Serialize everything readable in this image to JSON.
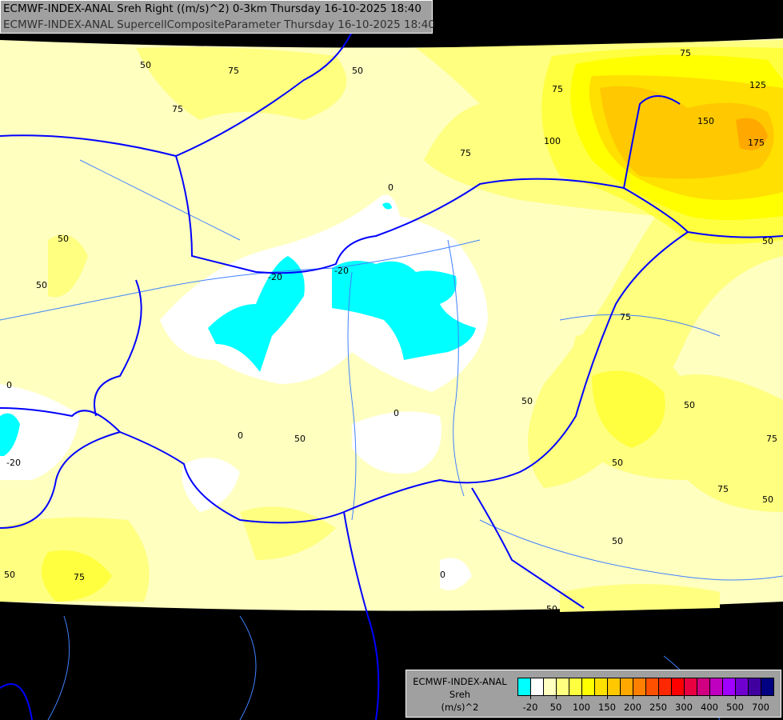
{
  "header": {
    "line1": "ECMWF-INDEX-ANAL Sreh Right ((m/s)^2) 0-3km Thursday 16-10-2025 18:40",
    "line2": "ECMWF-INDEX-ANAL SupercellCompositeParameter Thursday 16-10-2025 18:40"
  },
  "legend": {
    "model": "ECMWF-INDEX-ANAL",
    "parameter": "Sreh",
    "unit": "(m/s)^2",
    "colors": [
      "#00ffff",
      "#ffffff",
      "#ffffc0",
      "#ffff80",
      "#ffff40",
      "#ffff00",
      "#ffe000",
      "#ffc800",
      "#ffa800",
      "#ff8000",
      "#ff5000",
      "#ff2800",
      "#ff0000",
      "#e80040",
      "#d00080",
      "#c000c0",
      "#a000ff",
      "#7000d0",
      "#4000a0",
      "#000080"
    ],
    "ticks": [
      "-20",
      "50",
      "100",
      "150",
      "200",
      "250",
      "300",
      "400",
      "500",
      "700"
    ]
  },
  "contour_labels": [
    "50",
    "75",
    "75",
    "50",
    "75",
    "100",
    "75",
    "125",
    "150",
    "175",
    "0",
    "50",
    "50",
    "-20",
    "-20",
    "0",
    "-20",
    "0",
    "0",
    "50",
    "75",
    "50",
    "50",
    "75",
    "50",
    "75",
    "50",
    "0",
    "50",
    "75",
    "50",
    "50",
    "75",
    "50"
  ],
  "colors": {
    "background": "#000000",
    "border": "#0000ff",
    "river": "#4080ff"
  }
}
